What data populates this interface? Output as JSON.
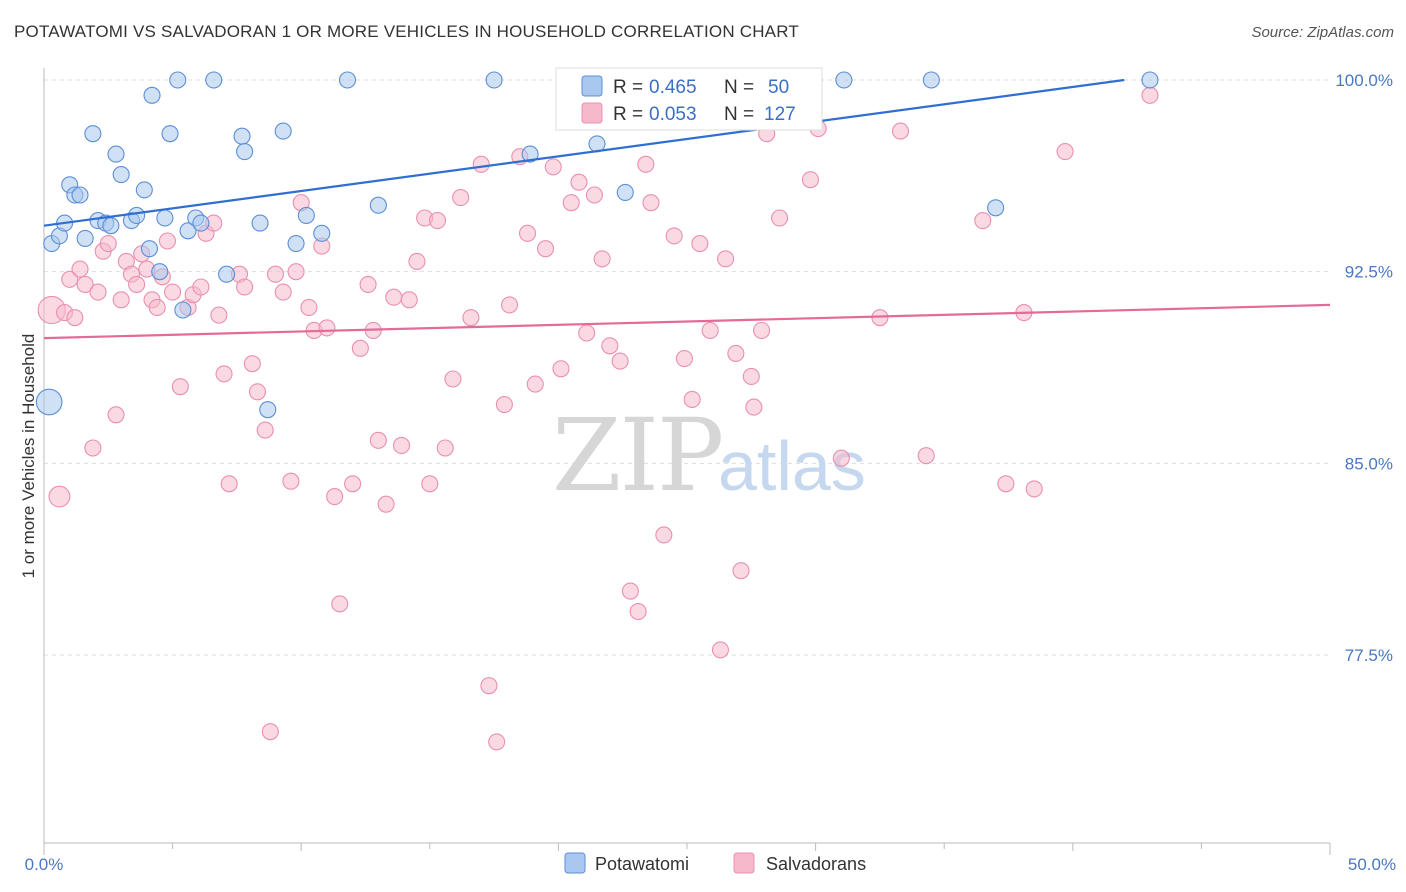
{
  "header": {
    "title": "POTAWATOMI VS SALVADORAN 1 OR MORE VEHICLES IN HOUSEHOLD CORRELATION CHART",
    "source": "Source: ZipAtlas.com"
  },
  "watermark": {
    "zip": "ZIP",
    "atlas": "atlas"
  },
  "legend": {
    "rows": [
      {
        "r_label": "R =",
        "r_value": "0.465",
        "n_label": "N =",
        "n_value": "50",
        "color": "#aac8ef"
      },
      {
        "r_label": "R =",
        "r_value": "0.053",
        "n_label": "N =",
        "n_value": "127",
        "color": "#f6b9cc"
      }
    ]
  },
  "bottom_legend": {
    "items": [
      {
        "label": "Potawatomi"
      },
      {
        "label": "Salvadorans"
      }
    ]
  },
  "colors": {
    "blue_fill": "#aac8ef",
    "blue_stroke": "#5b8fd6",
    "blue_line": "#2f6fd1",
    "pink_fill": "#f6b9cc",
    "pink_stroke": "#ea8fb0",
    "pink_line": "#e46a97",
    "grid": "#dddddd",
    "axis_text": "#4a78c2"
  },
  "chart_data": {
    "type": "scatter",
    "title": "POTAWATOMI VS SALVADORAN 1 OR MORE VEHICLES IN HOUSEHOLD CORRELATION CHART",
    "xlabel": "",
    "ylabel": "1 or more Vehicles in Household",
    "xlim": [
      0,
      50
    ],
    "ylim": [
      70,
      100.8
    ],
    "x_tick_labels": [
      "0.0%",
      "50.0%"
    ],
    "y_ticks": [
      77.5,
      85.0,
      92.5,
      100.0
    ],
    "y_tick_labels": [
      "77.5%",
      "85.0%",
      "92.5%",
      "100.0%"
    ],
    "grid": true,
    "series": [
      {
        "name": "Potawatomi",
        "r": 0.465,
        "n": 50,
        "trend": {
          "x": [
            0,
            42
          ],
          "y": [
            94.3,
            100.0
          ]
        },
        "points": [
          [
            0.2,
            87.4,
            1.6
          ],
          [
            0.3,
            93.6,
            1
          ],
          [
            0.6,
            93.9,
            1
          ],
          [
            0.8,
            94.4,
            1
          ],
          [
            1.0,
            95.9,
            1
          ],
          [
            1.2,
            95.5,
            1
          ],
          [
            1.4,
            95.5,
            1
          ],
          [
            1.6,
            93.8,
            1
          ],
          [
            1.9,
            97.9,
            1
          ],
          [
            2.1,
            94.5,
            1
          ],
          [
            2.4,
            94.4,
            1
          ],
          [
            2.6,
            94.3,
            1
          ],
          [
            2.8,
            97.1,
            1
          ],
          [
            3.0,
            96.3,
            1
          ],
          [
            3.4,
            94.5,
            1
          ],
          [
            3.6,
            94.7,
            1
          ],
          [
            3.9,
            95.7,
            1
          ],
          [
            4.1,
            93.4,
            1
          ],
          [
            4.2,
            99.4,
            1
          ],
          [
            4.5,
            92.5,
            1
          ],
          [
            4.7,
            94.6,
            1
          ],
          [
            4.9,
            97.9,
            1
          ],
          [
            5.2,
            100.0,
            1
          ],
          [
            5.4,
            91.0,
            1
          ],
          [
            5.6,
            94.1,
            1
          ],
          [
            5.9,
            94.6,
            1
          ],
          [
            6.1,
            94.4,
            1
          ],
          [
            6.6,
            100.0,
            1
          ],
          [
            7.1,
            92.4,
            1
          ],
          [
            7.7,
            97.8,
            1
          ],
          [
            7.8,
            97.2,
            1
          ],
          [
            8.4,
            94.4,
            1
          ],
          [
            8.7,
            87.1,
            1
          ],
          [
            9.3,
            98.0,
            1
          ],
          [
            9.8,
            93.6,
            1
          ],
          [
            10.2,
            94.7,
            1
          ],
          [
            10.8,
            94.0,
            1
          ],
          [
            11.8,
            100.0,
            1
          ],
          [
            13.0,
            95.1,
            1
          ],
          [
            17.5,
            100.0,
            1
          ],
          [
            18.9,
            97.1,
            1
          ],
          [
            21.5,
            97.5,
            1
          ],
          [
            22.6,
            95.6,
            1
          ],
          [
            31.1,
            100.0,
            1
          ],
          [
            34.5,
            100.0,
            1
          ],
          [
            37.0,
            95.0,
            1
          ],
          [
            43.0,
            100.0,
            1
          ]
        ]
      },
      {
        "name": "Salvadorans",
        "r": 0.053,
        "n": 127,
        "trend": {
          "x": [
            0,
            50
          ],
          "y": [
            89.9,
            91.2
          ]
        },
        "points": [
          [
            0.3,
            91.0,
            1.7
          ],
          [
            0.6,
            83.7,
            1.3
          ],
          [
            0.8,
            90.9,
            1
          ],
          [
            1.0,
            92.2,
            1
          ],
          [
            1.2,
            90.7,
            1
          ],
          [
            1.4,
            92.6,
            1
          ],
          [
            1.6,
            92.0,
            1
          ],
          [
            1.9,
            85.6,
            1
          ],
          [
            2.1,
            91.7,
            1
          ],
          [
            2.3,
            93.3,
            1
          ],
          [
            2.5,
            93.6,
            1
          ],
          [
            2.8,
            86.9,
            1
          ],
          [
            3.0,
            91.4,
            1
          ],
          [
            3.2,
            92.9,
            1
          ],
          [
            3.4,
            92.4,
            1
          ],
          [
            3.6,
            92.0,
            1
          ],
          [
            3.8,
            93.2,
            1
          ],
          [
            4.0,
            92.6,
            1
          ],
          [
            4.2,
            91.4,
            1
          ],
          [
            4.4,
            91.1,
            1
          ],
          [
            4.6,
            92.3,
            1
          ],
          [
            4.8,
            93.7,
            1
          ],
          [
            5.0,
            91.7,
            1
          ],
          [
            5.3,
            88.0,
            1
          ],
          [
            5.6,
            91.1,
            1
          ],
          [
            5.8,
            91.6,
            1
          ],
          [
            6.1,
            91.9,
            1
          ],
          [
            6.3,
            94.0,
            1
          ],
          [
            6.6,
            94.4,
            1
          ],
          [
            6.8,
            90.8,
            1
          ],
          [
            7.0,
            88.5,
            1
          ],
          [
            7.2,
            84.2,
            1
          ],
          [
            7.6,
            92.4,
            1
          ],
          [
            7.8,
            91.9,
            1
          ],
          [
            8.1,
            88.9,
            1
          ],
          [
            8.3,
            87.8,
            1
          ],
          [
            8.6,
            86.3,
            1
          ],
          [
            8.8,
            74.5,
            1
          ],
          [
            9.0,
            92.4,
            1
          ],
          [
            9.3,
            91.7,
            1
          ],
          [
            9.6,
            84.3,
            1
          ],
          [
            9.8,
            92.5,
            1
          ],
          [
            10.0,
            95.2,
            1
          ],
          [
            10.3,
            91.1,
            1
          ],
          [
            10.5,
            90.2,
            1
          ],
          [
            10.8,
            93.5,
            1
          ],
          [
            11.0,
            90.3,
            1
          ],
          [
            11.3,
            83.7,
            1
          ],
          [
            11.5,
            79.5,
            1
          ],
          [
            12.0,
            84.2,
            1
          ],
          [
            12.3,
            89.5,
            1
          ],
          [
            12.6,
            92.0,
            1
          ],
          [
            12.8,
            90.2,
            1
          ],
          [
            13.0,
            85.9,
            1
          ],
          [
            13.3,
            83.4,
            1
          ],
          [
            13.6,
            91.5,
            1
          ],
          [
            13.9,
            85.7,
            1
          ],
          [
            14.2,
            91.4,
            1
          ],
          [
            14.5,
            92.9,
            1
          ],
          [
            14.8,
            94.6,
            1
          ],
          [
            15.0,
            84.2,
            1
          ],
          [
            15.3,
            94.5,
            1
          ],
          [
            15.6,
            85.6,
            1
          ],
          [
            15.9,
            88.3,
            1
          ],
          [
            16.2,
            95.4,
            1
          ],
          [
            16.6,
            90.7,
            1
          ],
          [
            17.0,
            96.7,
            1
          ],
          [
            17.3,
            76.3,
            1
          ],
          [
            17.6,
            74.1,
            1
          ],
          [
            17.9,
            87.3,
            1
          ],
          [
            18.1,
            91.2,
            1
          ],
          [
            18.5,
            97.0,
            1
          ],
          [
            18.8,
            94.0,
            1
          ],
          [
            19.1,
            88.1,
            1
          ],
          [
            19.5,
            93.4,
            1
          ],
          [
            19.8,
            96.6,
            1
          ],
          [
            20.1,
            88.7,
            1
          ],
          [
            20.5,
            95.2,
            1
          ],
          [
            20.8,
            96.0,
            1
          ],
          [
            21.1,
            90.1,
            1
          ],
          [
            21.4,
            95.5,
            1
          ],
          [
            21.7,
            93.0,
            1
          ],
          [
            22.0,
            89.6,
            1
          ],
          [
            22.4,
            89.0,
            1
          ],
          [
            22.8,
            80.0,
            1
          ],
          [
            23.1,
            79.2,
            1
          ],
          [
            23.4,
            96.7,
            1
          ],
          [
            23.6,
            95.2,
            1
          ],
          [
            24.1,
            82.2,
            1
          ],
          [
            24.5,
            93.9,
            1
          ],
          [
            24.9,
            89.1,
            1
          ],
          [
            25.2,
            87.5,
            1
          ],
          [
            25.5,
            93.6,
            1
          ],
          [
            25.9,
            90.2,
            1
          ],
          [
            26.3,
            77.7,
            1
          ],
          [
            26.5,
            93.0,
            1
          ],
          [
            26.9,
            89.3,
            1
          ],
          [
            27.1,
            80.8,
            1
          ],
          [
            27.5,
            88.4,
            1
          ],
          [
            27.6,
            87.2,
            1
          ],
          [
            27.9,
            90.2,
            1
          ],
          [
            28.1,
            97.9,
            1
          ],
          [
            28.6,
            94.6,
            1
          ],
          [
            29.8,
            96.1,
            1
          ],
          [
            30.1,
            98.1,
            1
          ],
          [
            31.0,
            85.2,
            1
          ],
          [
            32.5,
            90.7,
            1
          ],
          [
            33.3,
            98.0,
            1
          ],
          [
            34.3,
            85.3,
            1
          ],
          [
            36.5,
            94.5,
            1
          ],
          [
            37.4,
            84.2,
            1
          ],
          [
            38.1,
            90.9,
            1
          ],
          [
            38.5,
            84.0,
            1
          ],
          [
            39.7,
            97.2,
            1
          ],
          [
            43.0,
            99.4,
            1
          ]
        ]
      }
    ]
  }
}
